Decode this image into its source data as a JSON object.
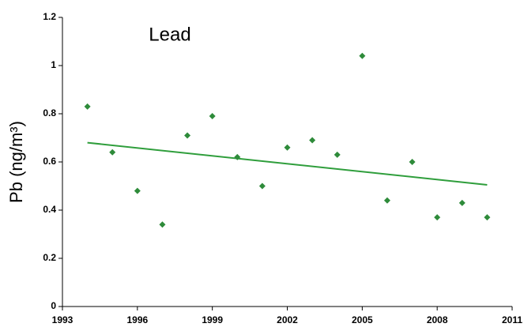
{
  "chart_data": {
    "type": "scatter",
    "title": "Lead",
    "y_label": "Pb (ng/m³)",
    "x": [
      1994,
      1995,
      1996,
      1997,
      1998,
      1999,
      2000,
      2001,
      2002,
      2003,
      2004,
      2005,
      2006,
      2007,
      2008,
      2009,
      2010
    ],
    "values": [
      0.83,
      0.64,
      0.48,
      0.34,
      0.71,
      0.79,
      0.62,
      0.5,
      0.66,
      0.69,
      0.63,
      1.04,
      0.44,
      0.6,
      0.37,
      0.43,
      0.37
    ],
    "color": "#2e8b3a",
    "trend": {
      "x": [
        1994,
        2010
      ],
      "values": [
        0.68,
        0.505
      ],
      "color": "#2f9e3c"
    },
    "xlim": [
      1993,
      2011
    ],
    "xticks": [
      1993,
      1996,
      1999,
      2002,
      2005,
      2008,
      2011
    ],
    "ylim": [
      0,
      1.2
    ],
    "yticks": [
      0,
      0.2,
      0.4,
      0.6,
      0.8,
      1,
      1.2
    ],
    "grid": false
  }
}
